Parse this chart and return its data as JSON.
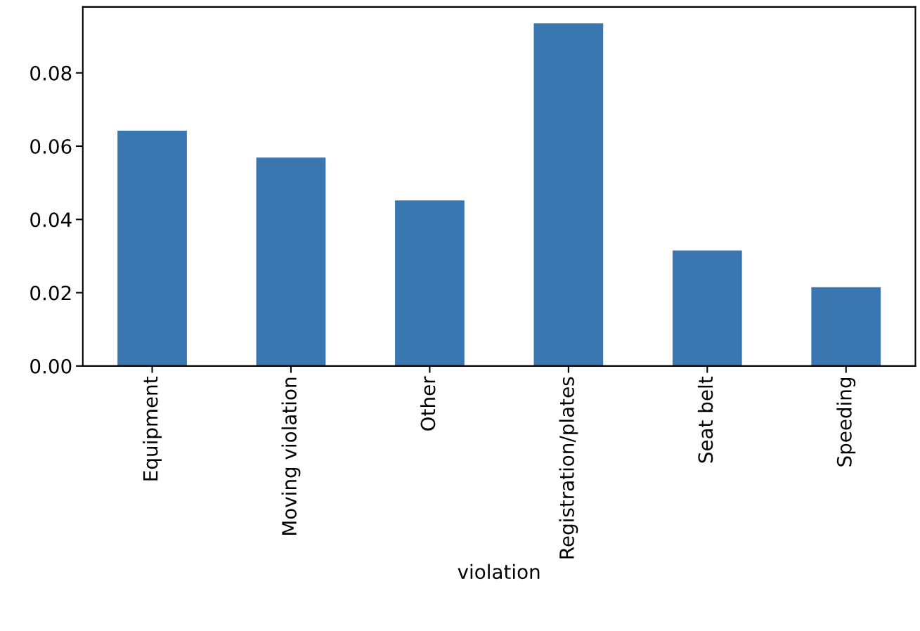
{
  "chart_data": {
    "type": "bar",
    "xlabel": "violation",
    "categories": [
      "Equipment",
      "Moving violation",
      "Other",
      "Registration/plates",
      "Seat belt",
      "Speeding"
    ],
    "values": [
      0.0642,
      0.0569,
      0.0452,
      0.0935,
      0.0315,
      0.0215
    ],
    "color": "#3a76af",
    "ylim": [
      0,
      0.098
    ],
    "yticks": [
      {
        "value": 0,
        "label": "0.00"
      },
      {
        "value": 0.02,
        "label": "0.02"
      },
      {
        "value": 0.04,
        "label": "0.04"
      },
      {
        "value": 0.06,
        "label": "0.06"
      },
      {
        "value": 0.08,
        "label": "0.08"
      }
    ],
    "grid": false
  }
}
